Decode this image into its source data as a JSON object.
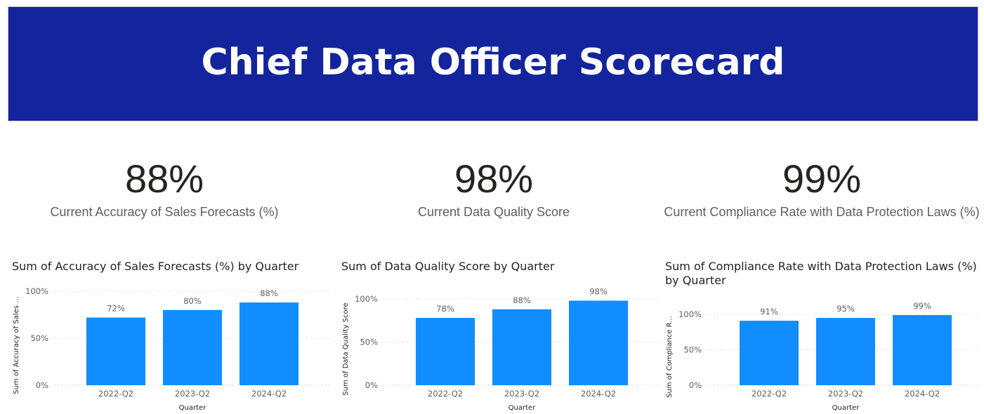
{
  "header": {
    "title": "Chief Data Officer Scorecard"
  },
  "colors": {
    "banner": "#13249d",
    "bar": "#118dff"
  },
  "kpis": [
    {
      "value": "88%",
      "label": "Current Accuracy of Sales Forecasts (%)"
    },
    {
      "value": "98%",
      "label": "Current Data Quality Score"
    },
    {
      "value": "99%",
      "label": "Current Compliance Rate with Data Protection Laws (%)"
    }
  ],
  "chart_data": [
    {
      "type": "bar",
      "title": "Sum of Accuracy of Sales Forecasts (%) by Quarter",
      "xlabel": "Quarter",
      "ylabel": "Sum of Accuracy of Sales ...",
      "categories": [
        "2022-Q2",
        "2023-Q2",
        "2024-Q2"
      ],
      "values": [
        72,
        80,
        88
      ],
      "data_labels": [
        "72%",
        "80%",
        "88%"
      ],
      "ylim": [
        0,
        100
      ],
      "yticks": [
        "0%",
        "50%",
        "100%"
      ],
      "grid": true
    },
    {
      "type": "bar",
      "title": "Sum of Data Quality Score by Quarter",
      "xlabel": "Quarter",
      "ylabel": "Sum of Data Quality Score",
      "categories": [
        "2022-Q2",
        "2023-Q2",
        "2024-Q2"
      ],
      "values": [
        78,
        88,
        98
      ],
      "data_labels": [
        "78%",
        "88%",
        "98%"
      ],
      "ylim": [
        0,
        100
      ],
      "yticks": [
        "0%",
        "50%",
        "100%"
      ],
      "grid": true
    },
    {
      "type": "bar",
      "title": "Sum of Compliance Rate with Data Protection Laws (%) by Quarter",
      "xlabel": "Quarter",
      "ylabel": "Sum of Compliance R...",
      "categories": [
        "2022-Q2",
        "2023-Q2",
        "2024-Q2"
      ],
      "values": [
        91,
        95,
        99
      ],
      "data_labels": [
        "91%",
        "95%",
        "99%"
      ],
      "ylim": [
        0,
        100
      ],
      "yticks": [
        "0%",
        "50%",
        "100%"
      ],
      "grid": true
    }
  ]
}
